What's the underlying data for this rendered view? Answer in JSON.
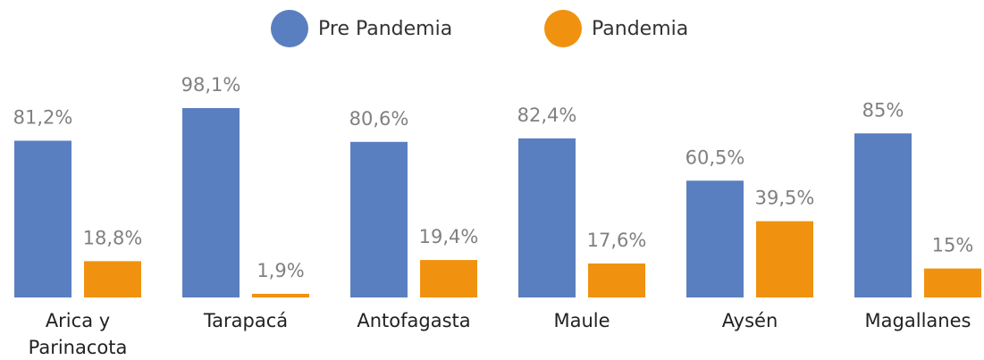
{
  "chart_data": {
    "type": "bar",
    "categories": [
      "Arica y Parinacota",
      "Tarapacá",
      "Antofagasta",
      "Maule",
      "Aysén",
      "Magallanes"
    ],
    "series": [
      {
        "name": "Pre Pandemia",
        "color": "#5a7fc0",
        "values": [
          81.2,
          98.1,
          80.6,
          82.4,
          60.5,
          85
        ],
        "value_labels": [
          "81,2%",
          "98,1%",
          "80,6%",
          "82,4%",
          "60,5%",
          "85%"
        ]
      },
      {
        "name": "Pandemia",
        "color": "#f0920f",
        "values": [
          18.8,
          1.9,
          19.4,
          17.6,
          39.5,
          15
        ],
        "value_labels": [
          "18,8%",
          "1,9%",
          "19,4%",
          "17,6%",
          "39,5%",
          "15%"
        ]
      }
    ]
  }
}
